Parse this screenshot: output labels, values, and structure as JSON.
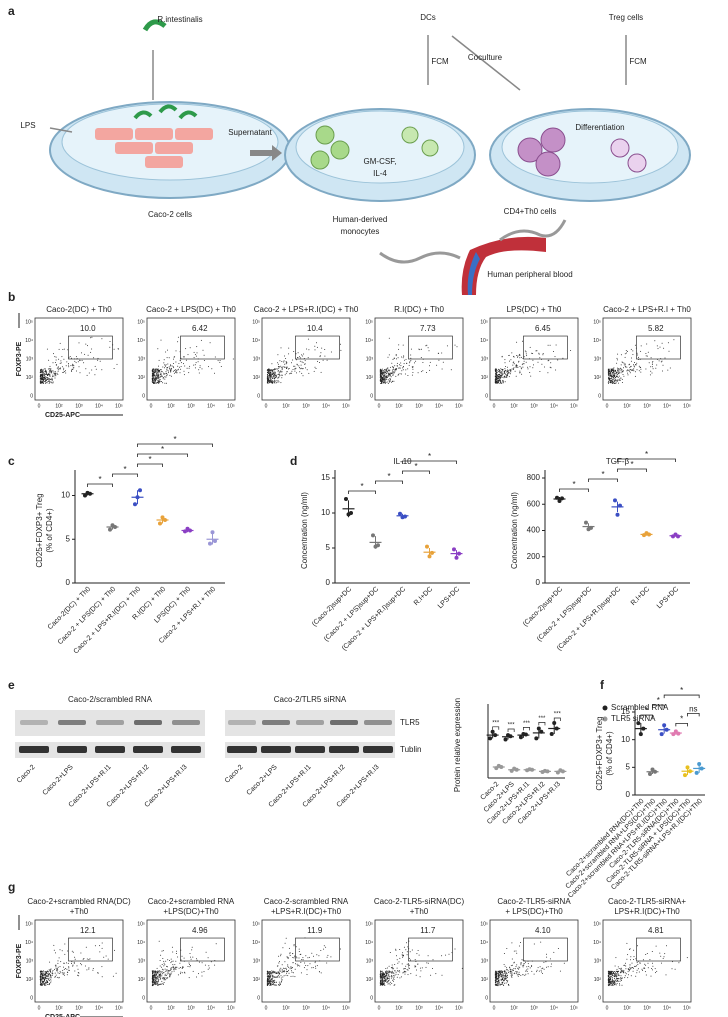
{
  "panels": [
    "a",
    "b",
    "c",
    "d",
    "e",
    "f",
    "g"
  ],
  "schematic": {
    "bacteria": "R.intestinalis",
    "lps": "LPS",
    "caco": "Caco-2 cells",
    "supernatant": "Supernatant",
    "dcs": "DCs",
    "fcm1": "FCM",
    "coculture": "Coculture",
    "treg": "Treg cells",
    "fcm2": "FCM",
    "gmcsf": "GM-CSF,",
    "il4": "IL-4",
    "differentiation": "Differentiation",
    "monocytes1": "Human-derived",
    "monocytes2": "monocytes",
    "cd4": "CD4+Th0 cells",
    "blood": "Human peripheral blood"
  },
  "flow_axis": {
    "y_label": "FOXP3-PE",
    "x_label": "CD25-APC",
    "x_ticks": [
      "0",
      "10²",
      "10³",
      "10⁴",
      "10⁵"
    ],
    "y_ticks": [
      "10⁵",
      "10⁴",
      "10³",
      "10²",
      "0"
    ]
  },
  "flow_b": {
    "titles": [
      "Caco-2(DC) + Th0",
      "Caco-2 + LPS(DC) + Th0",
      "Caco-2 + LPS+R.I(DC) + Th0",
      "R.I(DC) + Th0",
      "LPS(DC) + Th0",
      "Caco-2 + LPS+R.I + Th0"
    ],
    "gates": [
      "10.0",
      "6.42",
      "10.4",
      "7.73",
      "6.45",
      "5.82"
    ]
  },
  "western": {
    "left": "Caco-2/scrambled RNA",
    "right": "Caco-2/TLR5 siRNA",
    "band1": "TLR5",
    "band2": "Tublin"
  },
  "chart_data": [
    {
      "type": "dot",
      "ylabel": [
        "CD25+FOXP3+ Treg",
        "(% of CD4+)"
      ],
      "categories": [
        "Caco-2(DC) + Th0",
        "Caco-2 + LPS(DC) + Th0",
        "Caco-2 + LPS+R.I(DC) + Th0",
        "R.I(DC) + Th0",
        "LPS(DC) + Th0",
        "Caco-2 + LPS+R.I + Th0"
      ],
      "colors": [
        "#222222",
        "#777777",
        "#3b4fc4",
        "#e8a23a",
        "#8b3fc4",
        "#9a96d6"
      ],
      "values": [
        10.2,
        6.4,
        9.8,
        7.2,
        6.0,
        5.0
      ],
      "errors": [
        0.2,
        0.3,
        0.8,
        0.4,
        0.2,
        0.6
      ],
      "points": [
        [
          10.0,
          10.3,
          10.2
        ],
        [
          6.1,
          6.6,
          6.4
        ],
        [
          9.0,
          9.8,
          10.6
        ],
        [
          6.8,
          7.5,
          7.2
        ],
        [
          5.9,
          6.2,
          6.0
        ],
        [
          4.5,
          5.8,
          4.8
        ]
      ],
      "ylim": [
        0,
        12
      ],
      "yticks": [
        0,
        5,
        10
      ],
      "significance": [
        {
          "from": "Caco-2(DC) + Th0",
          "to": "Caco-2 + LPS(DC) + Th0",
          "label": "*"
        },
        {
          "from": "Caco-2 + LPS(DC) + Th0",
          "to": "Caco-2 + LPS+R.I(DC) + Th0",
          "label": "*"
        },
        {
          "from": "Caco-2 + LPS+R.I(DC) + Th0",
          "to": "R.I(DC) + Th0",
          "label": "*"
        },
        {
          "from": "Caco-2 + LPS+R.I(DC) + Th0",
          "to": "LPS(DC) + Th0",
          "label": "*"
        },
        {
          "from": "Caco-2 + LPS+R.I(DC) + Th0",
          "to": "Caco-2 + LPS+R.I + Th0",
          "label": "*"
        }
      ]
    },
    {
      "type": "dot",
      "title": "IL-10",
      "ylabel": [
        "Concentration (ng/ml)"
      ],
      "categories": [
        "(Caco-2)sup+DC",
        "(Caco-2 + LPS)sup+DC",
        "(Caco-2 + LPS+R.I)sup+DC",
        "R.I+DC",
        "LPS+DC"
      ],
      "colors": [
        "#222222",
        "#777777",
        "#3b4fc4",
        "#e8a23a",
        "#8b3fc4"
      ],
      "values": [
        10.6,
        5.8,
        9.6,
        4.4,
        4.2
      ],
      "errors": [
        1.2,
        0.9,
        0.3,
        0.6,
        0.5
      ],
      "points": [
        [
          12,
          9.8,
          10
        ],
        [
          6.8,
          5.2,
          5.4
        ],
        [
          9.9,
          9.4,
          9.5
        ],
        [
          5.2,
          3.8,
          4.3
        ],
        [
          4.8,
          3.6,
          4.2
        ]
      ],
      "ylim": [
        0,
        15
      ],
      "yticks": [
        0,
        5,
        10,
        15
      ],
      "significance": [
        {
          "from": "(Caco-2)sup+DC",
          "to": "(Caco-2 + LPS)sup+DC",
          "label": "*"
        },
        {
          "from": "(Caco-2 + LPS)sup+DC",
          "to": "(Caco-2 + LPS+R.I)sup+DC",
          "label": "*"
        },
        {
          "from": "(Caco-2 + LPS+R.I)sup+DC",
          "to": "R.I+DC",
          "label": "*"
        },
        {
          "from": "(Caco-2 + LPS+R.I)sup+DC",
          "to": "LPS+DC",
          "label": "*"
        }
      ]
    },
    {
      "type": "dot",
      "title": "TGF-β",
      "ylabel": [
        "Concentration (ng/ml)"
      ],
      "categories": [
        "(Caco-2)sup+DC",
        "(Caco-2 + LPS)sup+DC",
        "(Caco-2 + LPS+R.I)sup+DC",
        "R.I+DC",
        "LPS+DC"
      ],
      "colors": [
        "#222222",
        "#777777",
        "#3b4fc4",
        "#e8a23a",
        "#8b3fc4"
      ],
      "values": [
        640,
        430,
        580,
        370,
        360
      ],
      "errors": [
        15,
        25,
        40,
        10,
        8
      ],
      "points": [
        [
          650,
          625,
          645
        ],
        [
          460,
          410,
          420
        ],
        [
          630,
          520,
          590
        ],
        [
          365,
          380,
          370
        ],
        [
          355,
          370,
          355
        ]
      ],
      "ylim": [
        0,
        800
      ],
      "yticks": [
        0,
        200,
        400,
        600,
        800
      ],
      "significance": [
        {
          "from": "(Caco-2)sup+DC",
          "to": "(Caco-2 + LPS)sup+DC",
          "label": "*"
        },
        {
          "from": "(Caco-2 + LPS)sup+DC",
          "to": "(Caco-2 + LPS+R.I)sup+DC",
          "label": "*"
        },
        {
          "from": "(Caco-2 + LPS+R.I)sup+DC",
          "to": "R.I+DC",
          "label": "*"
        },
        {
          "from": "(Caco-2 + LPS+R.I)sup+DC",
          "to": "LPS+DC",
          "label": "*"
        }
      ]
    },
    {
      "type": "dot",
      "ylabel": [
        "Protein relative expression"
      ],
      "categories": [
        "Caco-2",
        "Caco-2+LPS",
        "Caco-2+LPS+R.I1",
        "Caco-2+LPS+R.I2",
        "Caco-2+LPS+R.I3"
      ],
      "series": [
        {
          "name": "Scrambled RNA",
          "color": "#222222",
          "values": [
            0.78,
            0.75,
            0.78,
            0.82,
            0.9
          ],
          "errors": [
            0.06,
            0.05,
            0.05,
            0.1,
            0.1
          ],
          "points": [
            [
              0.72,
              0.84,
              0.78
            ],
            [
              0.7,
              0.78,
              0.76
            ],
            [
              0.74,
              0.8,
              0.79
            ],
            [
              0.72,
              0.9,
              0.84
            ],
            [
              0.8,
              1.0,
              0.9
            ]
          ]
        },
        {
          "name": "TLR5 siRNA",
          "color": "#999999",
          "values": [
            0.2,
            0.15,
            0.15,
            0.12,
            0.12
          ],
          "errors": [
            0.02,
            0.02,
            0.01,
            0.01,
            0.02
          ],
          "points": [
            [
              0.18,
              0.22,
              0.2
            ],
            [
              0.13,
              0.17,
              0.15
            ],
            [
              0.14,
              0.16,
              0.15
            ],
            [
              0.11,
              0.13,
              0.12
            ],
            [
              0.1,
              0.14,
              0.12
            ]
          ]
        }
      ],
      "ylim": [
        0,
        1.2
      ],
      "annotations": [
        "***",
        "***",
        "***",
        "***",
        "***"
      ]
    },
    {
      "type": "dot",
      "ylabel": [
        "CD25+FOXP3+ Treg",
        "(% of CD4+)"
      ],
      "categories": [
        "Caco-2+scrambled RNA(DC)+Th0",
        "Caco-2+scrambled RNA+LPS(DC)+Th0",
        "Caco-2+scrambled RNA+LPS+R.I(DC)+Th0",
        "Caco-2-TLR5-siRNA(DC)+Th0",
        "Caco-2-TLR5-siRNA + LPS(DC)+Th0",
        "Caco-2-TLR5-siRNA+LPS+R.I(DC)+Th0"
      ],
      "colors": [
        "#222222",
        "#777777",
        "#3b4fc4",
        "#e07ab0",
        "#e8c020",
        "#4a9ad0"
      ],
      "values": [
        12,
        4.2,
        11.8,
        11.2,
        4.3,
        4.8
      ],
      "errors": [
        1.0,
        0.4,
        0.7,
        0.3,
        0.7,
        0.8
      ],
      "points": [
        [
          13,
          11,
          12
        ],
        [
          3.8,
          4.6,
          4.2
        ],
        [
          11,
          12.6,
          11.8
        ],
        [
          11,
          11.5,
          11.1
        ],
        [
          3.6,
          5,
          4.3
        ],
        [
          4,
          5.6,
          4.8
        ]
      ],
      "ylim": [
        0,
        15
      ],
      "yticks": [
        0,
        5,
        10,
        15
      ],
      "significance": [
        {
          "from": "Caco-2+scrambled RNA(DC)+Th0",
          "to": "Caco-2+scrambled RNA+LPS(DC)+Th0",
          "label": "*"
        },
        {
          "from": "Caco-2+scrambled RNA+LPS(DC)+Th0",
          "to": "Caco-2+scrambled RNA+LPS+R.I(DC)+Th0",
          "label": "*"
        },
        {
          "from": "Caco-2-TLR5-siRNA(DC)+Th0",
          "to": "Caco-2-TLR5-siRNA + LPS(DC)+Th0",
          "label": "*"
        },
        {
          "from": "Caco-2-TLR5-siRNA + LPS(DC)+Th0",
          "to": "Caco-2-TLR5-siRNA+LPS+R.I(DC)+Th0",
          "label": "ns"
        },
        {
          "from": "Caco-2+scrambled RNA+LPS+R.I(DC)+Th0",
          "to": "Caco-2-TLR5-siRNA+LPS+R.I(DC)+Th0",
          "label": "*"
        }
      ]
    }
  ],
  "flow_g": {
    "titles": [
      [
        "Caco-2+scrambled RNA(DC)",
        "+Th0"
      ],
      [
        "Caco-2+scrambled RNA",
        "+LPS(DC)+Th0"
      ],
      [
        "Caco-2-scrambled RNA",
        "+LPS+R.I(DC)+Th0"
      ],
      [
        "Caco-2-TLR5-siRNA(DC)",
        "+Th0"
      ],
      [
        "Caco-2-TLR5-siRNA",
        "+ LPS(DC)+Th0"
      ],
      [
        "Caco-2-TLR5-siRNA+",
        "LPS+R.I(DC)+Th0"
      ]
    ],
    "gates": [
      "12.1",
      "4.96",
      "11.9",
      "11.7",
      "4.10",
      "4.81"
    ]
  }
}
